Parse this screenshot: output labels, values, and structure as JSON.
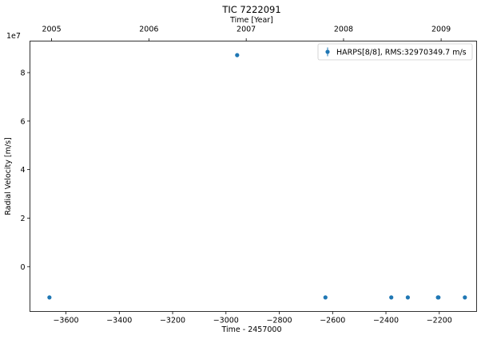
{
  "chart_data": {
    "type": "scatter",
    "title": "TIC 7222091",
    "xlabel": "Time - 2457000",
    "ylabel": "Radial Velocity [m/s]",
    "top_xlabel": "Time [Year]",
    "y_offset_label": "1e7",
    "xlim": [
      -3735,
      -2060
    ],
    "ylim": [
      -1.85,
      9.3
    ],
    "x_ticks": [
      -3600,
      -3400,
      -3200,
      -3000,
      -2800,
      -2600,
      -2400,
      -2200
    ],
    "x_tick_labels": [
      "−3600",
      "−3400",
      "−3200",
      "−3000",
      "−2800",
      "−2600",
      "−2400",
      "−2200"
    ],
    "y_ticks": [
      0,
      2,
      4,
      6,
      8
    ],
    "y_tick_labels": [
      "0",
      "2",
      "4",
      "6",
      "8"
    ],
    "top_ticks": [
      {
        "x": -3654,
        "label": "2005"
      },
      {
        "x": -3289,
        "label": "2006"
      },
      {
        "x": -2924,
        "label": "2007"
      },
      {
        "x": -2559,
        "label": "2008"
      },
      {
        "x": -2193,
        "label": "2009"
      }
    ],
    "grid": false,
    "legend_position": "top-right",
    "series": [
      {
        "name": "HARPS[8/8], RMS:32970349.7 m/s",
        "color": "#1f77b4",
        "x": [
          -3662,
          -2958,
          -2627,
          -2380,
          -2318,
          -2205,
          -2203,
          -2104
        ],
        "y": [
          -1.27,
          8.72,
          -1.27,
          -1.27,
          -1.27,
          -1.27,
          -1.27,
          -1.27
        ]
      }
    ]
  }
}
